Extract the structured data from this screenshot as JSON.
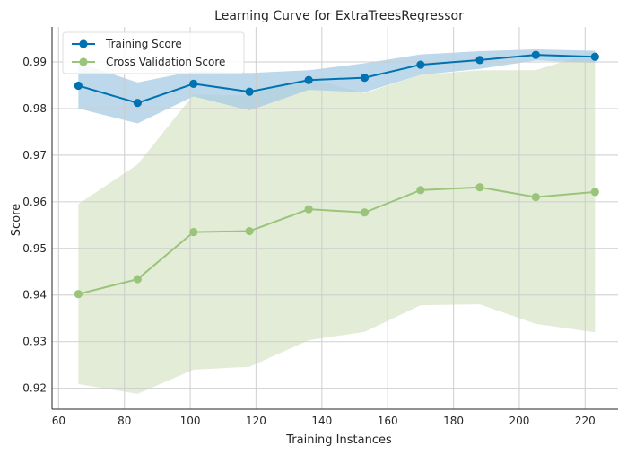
{
  "chart_data": {
    "type": "line",
    "title": "Learning Curve for ExtraTreesRegressor",
    "xlabel": "Training Instances",
    "ylabel": "Score",
    "xlim": [
      58,
      230
    ],
    "ylim": [
      0.9155,
      0.9975
    ],
    "xticks": [
      60,
      80,
      100,
      120,
      140,
      160,
      180,
      200,
      220
    ],
    "yticks": [
      0.92,
      0.93,
      0.94,
      0.95,
      0.96,
      0.97,
      0.98,
      0.99
    ],
    "grid": true,
    "legend_position": "top-left",
    "x": [
      66,
      84,
      101,
      118,
      136,
      153,
      170,
      188,
      205,
      223
    ],
    "series": [
      {
        "name": "Training Score",
        "color": "#0072b2",
        "band_color": "#a6cbe3",
        "values": [
          0.9849,
          0.9812,
          0.9853,
          0.9836,
          0.9861,
          0.9866,
          0.9894,
          0.9904,
          0.9915,
          0.9911
        ],
        "lower": [
          0.98,
          0.9768,
          0.9826,
          0.9796,
          0.984,
          0.9835,
          0.9872,
          0.9885,
          0.9903,
          0.9898
        ],
        "upper": [
          0.9898,
          0.9856,
          0.988,
          0.9876,
          0.9882,
          0.9897,
          0.9916,
          0.9923,
          0.9927,
          0.9924
        ]
      },
      {
        "name": "Cross Validation Score",
        "color": "#9bc47b",
        "band_color": "#e3ecd7",
        "values": [
          0.9402,
          0.9434,
          0.9535,
          0.9537,
          0.9584,
          0.9577,
          0.9625,
          0.9631,
          0.961,
          0.9621
        ],
        "lower": [
          0.9209,
          0.9188,
          0.924,
          0.9246,
          0.9303,
          0.9321,
          0.9378,
          0.938,
          0.9338,
          0.932
        ],
        "upper": [
          0.9595,
          0.968,
          0.983,
          0.9828,
          0.9865,
          0.9833,
          0.9872,
          0.9882,
          0.9882,
          0.9922
        ]
      }
    ]
  }
}
